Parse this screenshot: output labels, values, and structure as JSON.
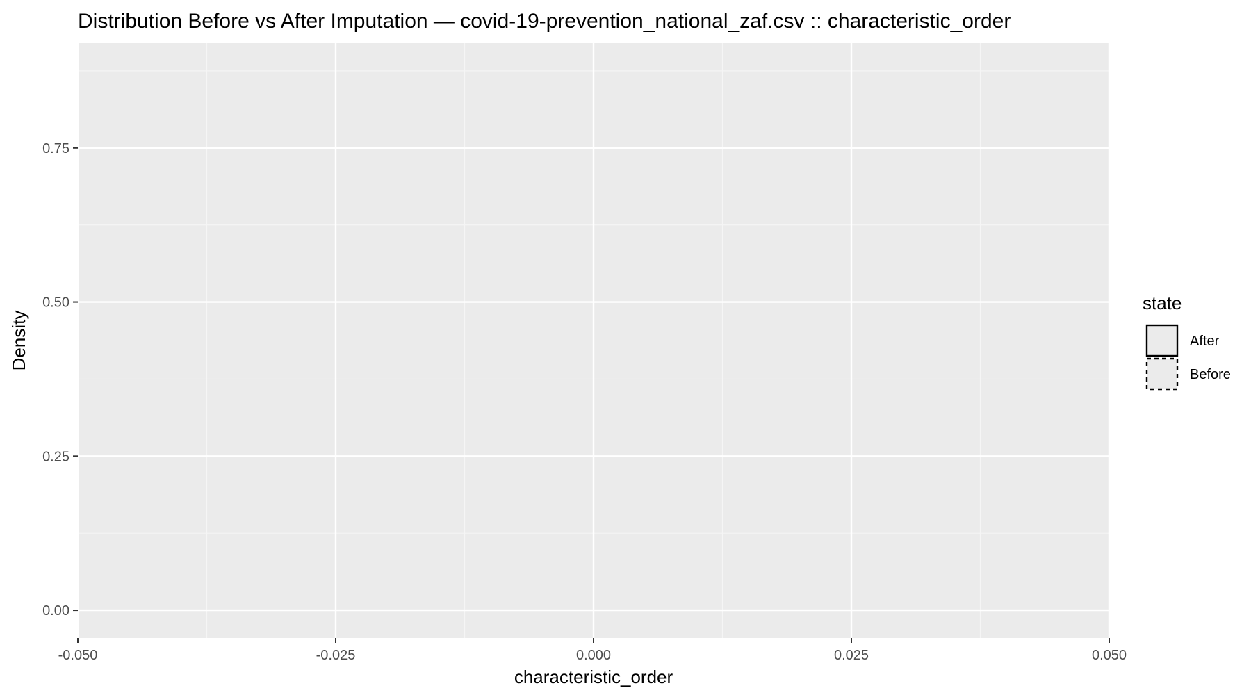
{
  "chart_data": {
    "type": "area",
    "title": "Distribution Before vs After Imputation — covid-19-prevention_national_zaf.csv :: characteristic_order",
    "xlabel": "characteristic_order",
    "ylabel": "Density",
    "xlim": [
      -0.05,
      0.05
    ],
    "ylim": [
      -0.045,
      0.92
    ],
    "x_ticks": [
      -0.05,
      -0.025,
      0.0,
      0.025,
      0.05
    ],
    "x_tick_labels": [
      "-0.050",
      "-0.025",
      "0.000",
      "0.025",
      "0.050"
    ],
    "y_ticks": [
      0.0,
      0.25,
      0.5,
      0.75
    ],
    "y_tick_labels": [
      "0.00",
      "0.25",
      "0.50",
      "0.75"
    ],
    "grid": true,
    "legend": {
      "title": "state",
      "position": "right",
      "entries": [
        {
          "label": "After",
          "linetype": "solid"
        },
        {
          "label": "Before",
          "linetype": "dashed"
        }
      ]
    },
    "series": [
      {
        "name": "After",
        "x": [],
        "y": []
      },
      {
        "name": "Before",
        "x": [],
        "y": []
      }
    ],
    "colors": {
      "panel": "#ebebeb",
      "grid_major": "#ffffff",
      "grid_minor": "#f5f5f5",
      "tick": "#333333",
      "legend_fill": "#ebebeb",
      "legend_stroke": "#000000"
    }
  }
}
